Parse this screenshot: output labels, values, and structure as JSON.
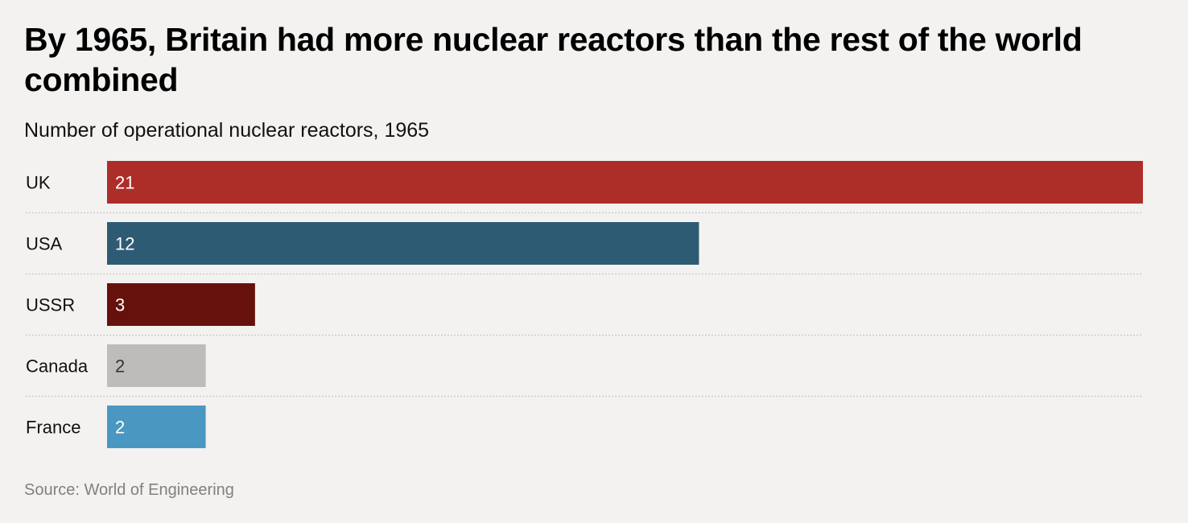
{
  "title": "By 1965, Britain had more nuclear reactors than the rest of the world combined",
  "subtitle": "Number of operational nuclear reactors, 1965",
  "source": "Source: World of Engineering",
  "chart_data": {
    "type": "bar",
    "orientation": "horizontal",
    "categories": [
      "UK",
      "USA",
      "USSR",
      "Canada",
      "France"
    ],
    "values": [
      21,
      12,
      3,
      2,
      2
    ],
    "colors": [
      "#ad2e29",
      "#2e5b74",
      "#66110c",
      "#bdbcba",
      "#4a98c1"
    ],
    "label_colors": [
      "#ffffff",
      "#ffffff",
      "#ffffff",
      "#333333",
      "#ffffff"
    ],
    "xlim": [
      0,
      21
    ],
    "grid": false,
    "row_separators": "dotted"
  }
}
